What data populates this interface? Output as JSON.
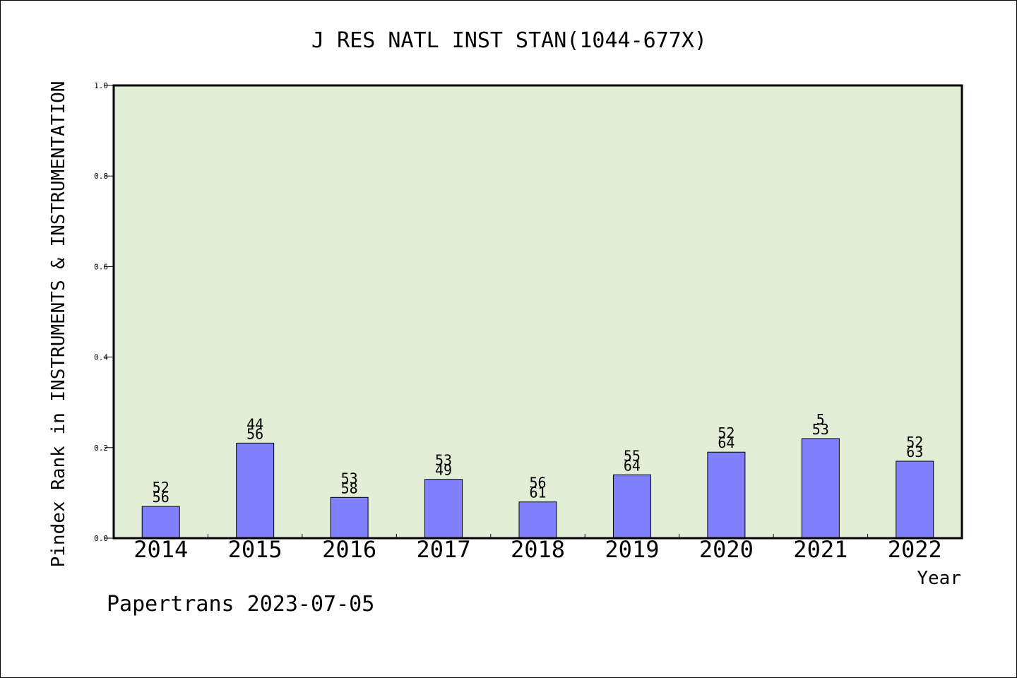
{
  "chart_data": {
    "type": "bar",
    "title": "J RES NATL INST STAN(1044-677X)",
    "xlabel": "Year",
    "ylabel": "Pindex Rank in INSTRUMENTS & INSTRUMENTATION",
    "footer": "Papertrans 2023-07-05",
    "categories": [
      "2014",
      "2015",
      "2016",
      "2017",
      "2018",
      "2019",
      "2020",
      "2021",
      "2022"
    ],
    "values": [
      0.07,
      0.21,
      0.09,
      0.13,
      0.08,
      0.14,
      0.19,
      0.22,
      0.17
    ],
    "label_top": [
      "52",
      "44",
      "53",
      "53",
      "56",
      "55",
      "52",
      "5",
      "52"
    ],
    "label_bottom": [
      "56",
      "56",
      "58",
      "49",
      "61",
      "64",
      "64",
      "53",
      "63"
    ],
    "ylim": [
      0,
      1.0
    ],
    "yticks": [
      "0.0",
      "0.2",
      "0.4",
      "0.6",
      "0.8",
      "1.0"
    ],
    "grid": false,
    "colors": {
      "plot_background": "#e2efd6",
      "bar_fill": "#8080ff",
      "bar_stroke": "#000000",
      "axis": "#000000"
    }
  }
}
